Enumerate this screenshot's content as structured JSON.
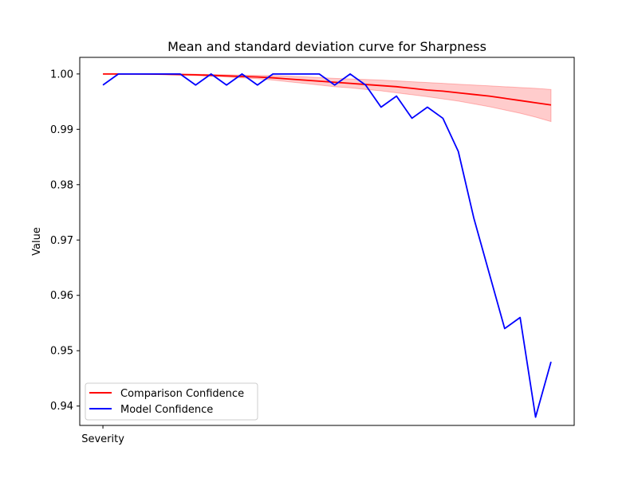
{
  "chart_data": {
    "type": "line",
    "title": "Mean and standard deviation curve for Sharpness",
    "xlabel": "",
    "ylabel": "Value",
    "x_tick_labels": [
      "Severity"
    ],
    "ylim": [
      0.9365,
      1.003
    ],
    "yticks": [
      0.94,
      0.95,
      0.96,
      0.97,
      0.98,
      0.99,
      1.0
    ],
    "ytick_labels": [
      "0.94",
      "0.95",
      "0.96",
      "0.97",
      "0.98",
      "0.99",
      "1.00"
    ],
    "x": [
      1,
      2,
      3,
      4,
      5,
      6,
      7,
      8,
      9,
      10,
      11,
      12,
      13,
      14,
      15,
      16,
      17,
      18,
      19,
      20,
      21,
      22,
      23,
      24,
      25,
      26,
      27,
      28,
      29,
      30
    ],
    "xlim": [
      -0.5,
      31.5
    ],
    "legend_position": "lower-left",
    "grid": false,
    "series": [
      {
        "name": "Comparison Confidence",
        "color": "#ff0000",
        "values": [
          1.0,
          1.0,
          1.0,
          0.99998,
          0.99995,
          0.9999,
          0.99985,
          0.99975,
          0.99965,
          0.99955,
          0.99945,
          0.9993,
          0.9991,
          0.9989,
          0.9987,
          0.9985,
          0.9983,
          0.9981,
          0.9979,
          0.9977,
          0.9974,
          0.9971,
          0.9969,
          0.9966,
          0.9963,
          0.996,
          0.9956,
          0.9952,
          0.9948,
          0.9944
        ],
        "upper": [
          1.0,
          1.0,
          1.0,
          1.0,
          1.0,
          0.99998,
          0.99996,
          0.9999,
          0.99985,
          0.9998,
          0.99975,
          0.9997,
          0.9996,
          0.9995,
          0.99935,
          0.9992,
          0.9991,
          0.999,
          0.9989,
          0.99875,
          0.9986,
          0.99845,
          0.9983,
          0.99815,
          0.998,
          0.99785,
          0.9977,
          0.99755,
          0.9974,
          0.9972
        ],
        "lower": [
          1.0,
          1.0,
          1.0,
          0.99996,
          0.9999,
          0.9998,
          0.9997,
          0.9996,
          0.99945,
          0.9993,
          0.99915,
          0.9989,
          0.9986,
          0.9983,
          0.998,
          0.9977,
          0.9975,
          0.9972,
          0.99695,
          0.9966,
          0.99625,
          0.9959,
          0.9955,
          0.9951,
          0.9946,
          0.9941,
          0.9935,
          0.9929,
          0.9922,
          0.9914
        ]
      },
      {
        "name": "Model Confidence",
        "color": "#0000ff",
        "values": [
          0.998,
          1.0,
          1.0,
          1.0,
          1.0,
          1.0,
          0.998,
          1.0,
          0.998,
          1.0,
          0.998,
          1.0,
          1.0,
          1.0,
          1.0,
          0.998,
          1.0,
          0.998,
          0.994,
          0.996,
          0.992,
          0.994,
          0.992,
          0.986,
          0.974,
          0.964,
          0.954,
          0.956,
          0.938,
          0.948
        ]
      }
    ]
  }
}
